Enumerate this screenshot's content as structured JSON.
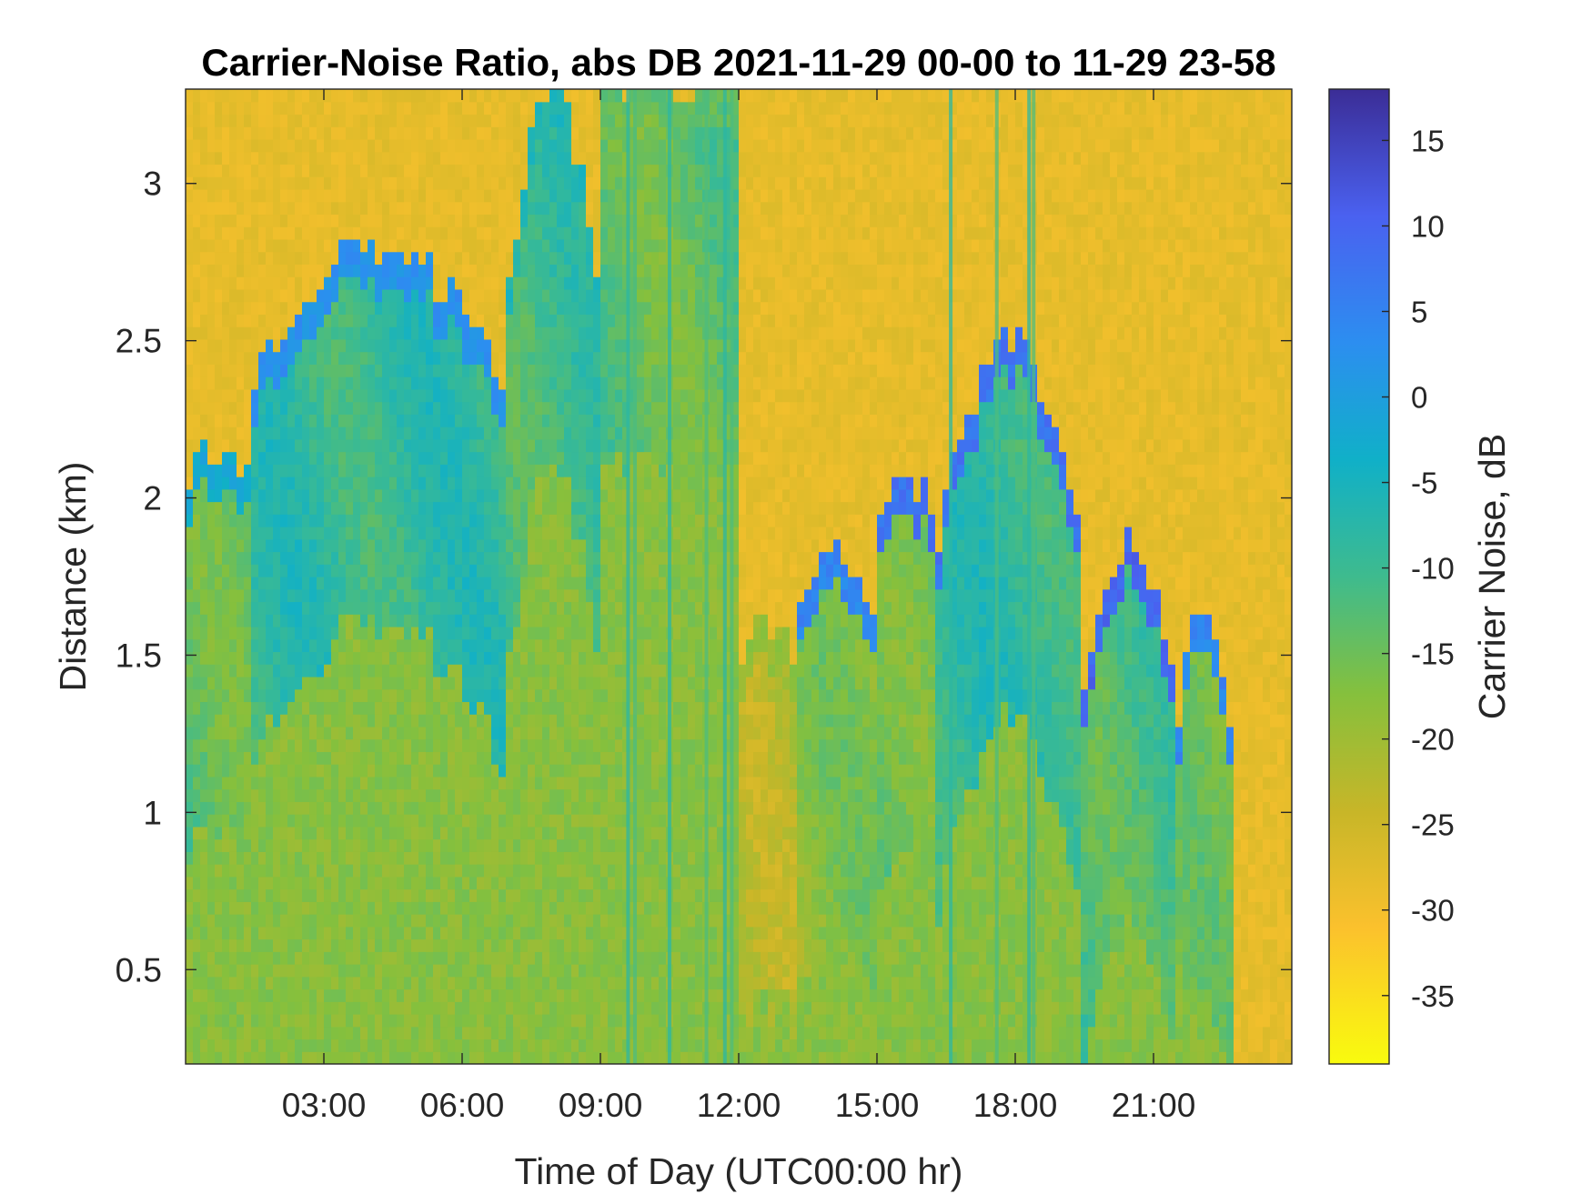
{
  "chart_data": {
    "type": "heatmap",
    "title": "Carrier-Noise Ratio, abs DB 2021-11-29 00-00 to 11-29 23-58",
    "xlabel": "Time of Day (UTC00:00 hr)",
    "ylabel": "Distance (km)",
    "xlim": [
      0,
      24
    ],
    "ylim": [
      0.2,
      3.3
    ],
    "xticks": [
      3,
      6,
      9,
      12,
      15,
      18,
      21
    ],
    "xtick_labels": [
      "03:00",
      "06:00",
      "09:00",
      "12:00",
      "15:00",
      "18:00",
      "21:00"
    ],
    "yticks": [
      0.5,
      1,
      1.5,
      2,
      2.5,
      3
    ],
    "ytick_labels": [
      "0.5",
      "1",
      "1.5",
      "2",
      "2.5",
      "3"
    ],
    "colorbar": {
      "label": "Carrier Noise, dB",
      "clim": [
        -39,
        18
      ],
      "ticks": [
        15,
        10,
        5,
        0,
        -5,
        -10,
        -15,
        -20,
        -25,
        -30,
        -35
      ],
      "tick_labels": [
        "15",
        "10",
        "5",
        "0",
        "-5",
        "-10",
        "-15",
        "-20",
        "-25",
        "-30",
        "-35"
      ],
      "colormap": "parula-reversed",
      "colors": [
        "#F9FB0E",
        "#FBC12D",
        "#C7B628",
        "#85C03D",
        "#3EBB8E",
        "#10B0C8",
        "#2C8EF0",
        "#4A61F0",
        "#3B2D96"
      ]
    },
    "background_value_db": -29,
    "signal_segments": [
      {
        "t": [
          0.0,
          1.5
        ],
        "top_km": [
          2.05,
          2.15
        ],
        "core_db": -14,
        "top_db": -2
      },
      {
        "t": [
          1.5,
          7.0
        ],
        "top_km": [
          2.3,
          2.8
        ],
        "core_db": -9,
        "top_db": 3
      },
      {
        "t": [
          7.0,
          9.0
        ],
        "top_km": [
          2.5,
          3.3
        ],
        "core_db": -11,
        "top_db": -6
      },
      {
        "t": [
          9.0,
          12.0
        ],
        "top_km": [
          3.3,
          3.3
        ],
        "core_db": -14,
        "top_db": -14
      },
      {
        "t": [
          12.0,
          13.2
        ],
        "top_km": [
          1.5,
          1.6
        ],
        "core_db": -22,
        "top_db": -19
      },
      {
        "t": [
          13.2,
          15.0
        ],
        "top_km": [
          1.55,
          1.85
        ],
        "core_db": -18,
        "top_db": 5
      },
      {
        "t": [
          15.0,
          16.3
        ],
        "top_km": [
          1.9,
          2.05
        ],
        "core_db": -15,
        "top_db": 8
      },
      {
        "t": [
          16.3,
          19.5
        ],
        "top_km": [
          1.7,
          2.5
        ],
        "core_db": -9,
        "top_db": 8
      },
      {
        "t": [
          19.5,
          21.5
        ],
        "top_km": [
          1.3,
          1.85
        ],
        "core_db": -12,
        "top_db": 10
      },
      {
        "t": [
          21.5,
          22.7
        ],
        "top_km": [
          1.2,
          1.65
        ],
        "core_db": -17,
        "top_db": 5
      }
    ],
    "vertical_streaks_hours": [
      9.6,
      9.75,
      10.5,
      11.3,
      11.7,
      11.85,
      16.6,
      17.6,
      18.3,
      18.4
    ]
  }
}
